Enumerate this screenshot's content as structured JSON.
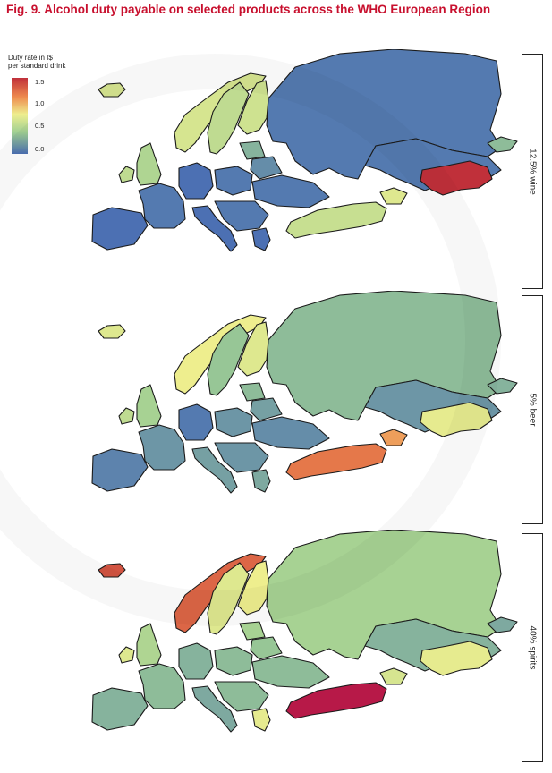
{
  "title": "Fig. 9. Alcohol duty payable on selected products across the WHO European Region",
  "legend": {
    "title_line1": "Duty rate in I$",
    "title_line2": "per standard drink",
    "ticks": [
      "1.5",
      "1.0",
      "0.5",
      "0.0"
    ]
  },
  "colors": {
    "title": "#c8102e",
    "scale_0_0": "#4c70b3",
    "scale_0_5": "#9fcf93",
    "scale_1_0": "#eeee8e",
    "scale_1_5": "#c0303a",
    "max": "#b5134c"
  },
  "chart_data": [
    {
      "type": "choropleth",
      "panel": "12.5% wine",
      "scale_range": [
        0,
        1.5
      ],
      "regions": [
        {
          "name": "Russian Federation",
          "value": 0.05
        },
        {
          "name": "Kazakhstan",
          "value": 0.05
        },
        {
          "name": "Uzbekistan",
          "value": 1.5
        },
        {
          "name": "Kyrgyzstan",
          "value": 0.4
        },
        {
          "name": "Turkey",
          "value": 0.75
        },
        {
          "name": "Georgia / Armenia",
          "value": 0.9
        },
        {
          "name": "Norway",
          "value": 0.85
        },
        {
          "name": "Sweden",
          "value": 0.7
        },
        {
          "name": "Finland",
          "value": 0.8
        },
        {
          "name": "Iceland",
          "value": 0.85
        },
        {
          "name": "Ireland",
          "value": 0.7
        },
        {
          "name": "United Kingdom",
          "value": 0.6
        },
        {
          "name": "France",
          "value": 0.05
        },
        {
          "name": "Spain / Portugal",
          "value": 0.0
        },
        {
          "name": "Germany",
          "value": 0.0
        },
        {
          "name": "Italy",
          "value": 0.0
        },
        {
          "name": "Poland",
          "value": 0.05
        },
        {
          "name": "Ukraine",
          "value": 0.05
        },
        {
          "name": "Belarus",
          "value": 0.15
        },
        {
          "name": "Baltic States",
          "value": 0.35
        },
        {
          "name": "Balkans",
          "value": 0.05
        },
        {
          "name": "Greece",
          "value": 0.0
        }
      ]
    },
    {
      "type": "choropleth",
      "panel": "5% beer",
      "scale_range": [
        0,
        1.5
      ],
      "regions": [
        {
          "name": "Russian Federation",
          "value": 0.4
        },
        {
          "name": "Kazakhstan",
          "value": 0.2
        },
        {
          "name": "Uzbekistan",
          "value": 0.95
        },
        {
          "name": "Kyrgyzstan",
          "value": 0.35
        },
        {
          "name": "Turkey",
          "value": 1.3
        },
        {
          "name": "Georgia / Armenia",
          "value": 1.2
        },
        {
          "name": "Norway",
          "value": 1.0
        },
        {
          "name": "Sweden",
          "value": 0.45
        },
        {
          "name": "Finland",
          "value": 0.9
        },
        {
          "name": "Iceland",
          "value": 0.9
        },
        {
          "name": "Ireland",
          "value": 0.7
        },
        {
          "name": "United Kingdom",
          "value": 0.55
        },
        {
          "name": "France",
          "value": 0.2
        },
        {
          "name": "Spain / Portugal",
          "value": 0.1
        },
        {
          "name": "Germany",
          "value": 0.05
        },
        {
          "name": "Italy",
          "value": 0.25
        },
        {
          "name": "Poland",
          "value": 0.2
        },
        {
          "name": "Ukraine",
          "value": 0.15
        },
        {
          "name": "Belarus",
          "value": 0.25
        },
        {
          "name": "Baltic States",
          "value": 0.4
        },
        {
          "name": "Balkans",
          "value": 0.2
        },
        {
          "name": "Greece",
          "value": 0.3
        }
      ]
    },
    {
      "type": "choropleth",
      "panel": "40% spirits",
      "scale_range": [
        0,
        1.5
      ],
      "regions": [
        {
          "name": "Russian Federation",
          "value": 0.55
        },
        {
          "name": "Kazakhstan",
          "value": 0.35
        },
        {
          "name": "Uzbekistan",
          "value": 0.95
        },
        {
          "name": "Kyrgyzstan",
          "value": 0.3
        },
        {
          "name": "Turkey",
          "value": 1.7
        },
        {
          "name": "Georgia / Armenia",
          "value": 0.85
        },
        {
          "name": "Norway",
          "value": 1.35
        },
        {
          "name": "Sweden",
          "value": 0.9
        },
        {
          "name": "Finland",
          "value": 1.0
        },
        {
          "name": "Iceland",
          "value": 1.4
        },
        {
          "name": "Ireland",
          "value": 0.9
        },
        {
          "name": "United Kingdom",
          "value": 0.6
        },
        {
          "name": "France",
          "value": 0.4
        },
        {
          "name": "Spain / Portugal",
          "value": 0.35
        },
        {
          "name": "Germany",
          "value": 0.35
        },
        {
          "name": "Italy",
          "value": 0.3
        },
        {
          "name": "Poland",
          "value": 0.4
        },
        {
          "name": "Ukraine",
          "value": 0.4
        },
        {
          "name": "Belarus",
          "value": 0.45
        },
        {
          "name": "Baltic States",
          "value": 0.55
        },
        {
          "name": "Balkans",
          "value": 0.4
        },
        {
          "name": "Greece",
          "value": 0.95
        }
      ]
    }
  ]
}
